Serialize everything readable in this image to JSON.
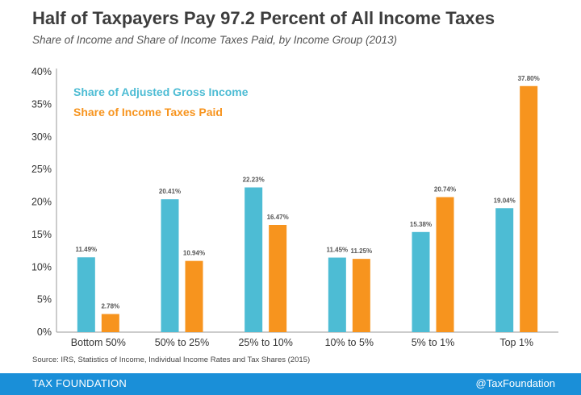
{
  "title": "Half of Taxpayers Pay 97.2 Percent of All Income Taxes",
  "subtitle": "Share of Income and Share of Income Taxes Paid, by Income Group (2013)",
  "source": "Source: IRS, Statistics of Income, Individual Income Rates and Tax Shares (2015)",
  "footer": {
    "brand": "TAX FOUNDATION",
    "handle": "@TaxFoundation"
  },
  "colors": {
    "agi": "#4dbcd4",
    "tax": "#f7941e",
    "footer": "#1a8fd8"
  },
  "chart_data": {
    "type": "bar",
    "categories": [
      "Bottom 50%",
      "50% to 25%",
      "25% to 10%",
      "10% to 5%",
      "5% to 1%",
      "Top 1%"
    ],
    "series": [
      {
        "name": "Share of Adjusted Gross Income",
        "values": [
          11.49,
          20.41,
          22.23,
          11.45,
          15.38,
          19.04
        ],
        "labels": [
          "11.49%",
          "20.41%",
          "22.23%",
          "11.45%",
          "15.38%",
          "19.04%"
        ]
      },
      {
        "name": "Share of Income Taxes Paid",
        "values": [
          2.78,
          10.94,
          16.47,
          11.25,
          20.74,
          37.8
        ],
        "labels": [
          "2.78%",
          "10.94%",
          "16.47%",
          "11.25%",
          "20.74%",
          "37.80%"
        ]
      }
    ],
    "yticks": [
      "0%",
      "5%",
      "10%",
      "15%",
      "20%",
      "25%",
      "30%",
      "35%",
      "40%"
    ],
    "ylim": [
      0,
      40
    ],
    "grid": false,
    "legend_position": "top-left"
  }
}
